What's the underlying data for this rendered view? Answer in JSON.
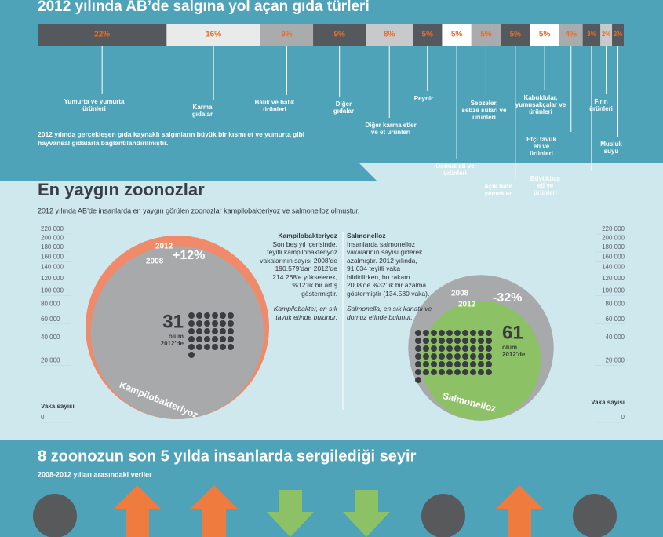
{
  "header": {
    "title": "2012 yılında AB’de salgına yol açan gıda türleri"
  },
  "food_bar": {
    "values": [
      22,
      16,
      9,
      9,
      8,
      5,
      5,
      5,
      5,
      5,
      4,
      3,
      2,
      2
    ],
    "value_labels": [
      "22%",
      "16%",
      "9%",
      "9%",
      "8%",
      "5%",
      "5%",
      "5%",
      "5%",
      "5%",
      "4%",
      "3%",
      "2%",
      "2%"
    ],
    "colors": [
      "#55595d",
      "#e9eaea",
      "#a9abad",
      "#55595d",
      "#c8c9ca",
      "#55595d",
      "#ffffff",
      "#a9abad",
      "#55595d",
      "#ffffff",
      "#a9abad",
      "#55595d",
      "#c8c9ca",
      "#55595d"
    ],
    "names": [
      [
        "Yumurta ve yumurta",
        "ürünleri"
      ],
      [
        "Karma",
        "gıdalar"
      ],
      [
        "Balık ve balık",
        "ürünleri"
      ],
      [
        "Diğer",
        "gıdalar"
      ],
      [
        "Diğer karma etler",
        "ve et ürünleri"
      ],
      [
        "Peynir"
      ],
      [
        "Domuz eti ve",
        "ürünleri"
      ],
      [
        "Sebzeler,",
        "sebze suları ve",
        "ürünleri"
      ],
      [
        "Açık büfe",
        "yemekler"
      ],
      [
        "Kabuklular,",
        "yumuşakçalar ve",
        "ürünleri"
      ],
      [
        "Etçi tavuk",
        "eti ve",
        "ürünleri"
      ],
      [
        "Büyükbaş",
        "eti ve",
        "ürünleri"
      ],
      [
        "Fırın",
        "ürünleri"
      ],
      [
        "Musluk",
        "suyu"
      ]
    ]
  },
  "food_note": "2012 yılında gerçekleşen gıda kaynaklı salgınların büyük bir kısmı et ve yumurta gibi hayvansal gıdalarla bağlantılandırılmıştır.",
  "zoonoses": {
    "title": "En yaygın zoonozlar",
    "subtitle": "2012 yılında AB’de insanlarda en yaygın görülen zoonozlar kampilobakteriyoz ve salmonelloz olmuştur.",
    "axis_label": "Vaka sayısı",
    "ticks": [
      0,
      {
        "value": 20000,
        "label": "20 000"
      },
      {
        "value": 40000,
        "label": "40 000"
      },
      {
        "value": 60000,
        "label": "60 000"
      },
      {
        "value": 80000,
        "label": "80 000"
      },
      {
        "value": 100000,
        "label": "100 000"
      },
      {
        "value": 120000,
        "label": "120 000"
      },
      {
        "value": 140000,
        "label": "140 000"
      },
      {
        "value": 160000,
        "label": "160 000"
      },
      {
        "value": 180000,
        "label": "180 000"
      },
      {
        "value": 200000,
        "label": "200 000"
      },
      {
        "value": 220000,
        "label": "220 000"
      }
    ],
    "campylo": {
      "heading": "Kampilobakteriyoz",
      "text": "Son beş yıl içerisinde, teyitli kampilobakteriyoz vakalarının sayısı 2008’de 190.579’dan 2012’de 214.268’e yükselerek, %12’lik bir artış göstermiştir.",
      "note": "Kampilobakter, en sık tavuk etinde bulunur.",
      "name": "Kampilobakteriyoz",
      "outer_year": "2012",
      "outer_cases": 214268,
      "inner_year": "2008",
      "inner_cases": 190579,
      "change": "+12%",
      "deaths": 31,
      "deaths_word": "ölüm",
      "deaths_year": "2012’de"
    },
    "salmonella": {
      "heading": "Salmonelloz",
      "text": "İnsanlarda salmonelloz vakalarının sayısı giderek azalmıştır. 2012 yılında, 91.034 teyitli vaka bildirilirken, bu rakam 2008’de %32’lik bir azalma göstermiştir (134.580 vaka).",
      "note": "Salmonella, en sık kanatlı ve domuz etinde bulunur.",
      "name": "Salmonelloz",
      "outer_year": "2008",
      "outer_cases": 134580,
      "inner_year": "2012",
      "inner_cases": 91034,
      "change": "-32%",
      "deaths": 61,
      "deaths_word": "ölüm",
      "deaths_year": "2012’de"
    }
  },
  "trends": {
    "title": "8 zoonozun son 5 yılda insanlarda sergilediği seyir",
    "subtitle": "2008-2012 yılları arasındaki veriler"
  }
}
